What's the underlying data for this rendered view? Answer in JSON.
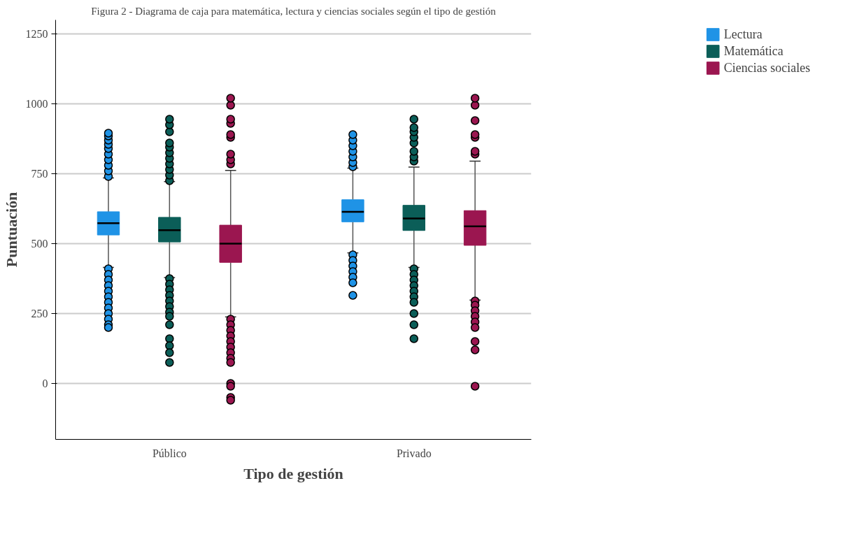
{
  "chart_data": {
    "type": "box",
    "title": "Figura 2 - Diagrama de caja para matemática, lectura y ciencias sociales según el tipo de gestión",
    "xlabel": "Tipo de gestión",
    "ylabel": "Puntuación",
    "categories": [
      "Público",
      "Privado"
    ],
    "ylim": [
      -200,
      1300
    ],
    "yticks": [
      0,
      250,
      500,
      750,
      1000,
      1250
    ],
    "grid": "y",
    "legend": "top right",
    "marker": "circle",
    "series": [
      {
        "name": "Lectura",
        "color": "#1f93e6",
        "boxes": [
          {
            "low": 415,
            "q1": 531,
            "median": 573,
            "q3": 614,
            "high": 735,
            "outliers": [
              740,
              760,
              780,
              800,
              820,
              840,
              855,
              870,
              885,
              895,
              410,
              390,
              370,
              350,
              330,
              310,
              290,
              270,
              250,
              230,
              210,
              200
            ]
          },
          {
            "low": 467,
            "q1": 578,
            "median": 614,
            "q3": 657,
            "high": 770,
            "outliers": [
              775,
              790,
              810,
              830,
              850,
              870,
              890,
              460,
              440,
              420,
              400,
              380,
              360,
              315
            ]
          }
        ]
      },
      {
        "name": "Matemática",
        "color": "#0b5e58",
        "boxes": [
          {
            "low": 379,
            "q1": 506,
            "median": 548,
            "q3": 594,
            "high": 722,
            "outliers": [
              725,
              745,
              765,
              785,
              805,
              825,
              845,
              860,
              900,
              925,
              945,
              375,
              355,
              335,
              315,
              295,
              275,
              255,
              240,
              210,
              160,
              135,
              110,
              75
            ]
          },
          {
            "low": 415,
            "q1": 547,
            "median": 590,
            "q3": 637,
            "high": 774,
            "outliers": [
              795,
              810,
              830,
              860,
              880,
              900,
              915,
              945,
              410,
              390,
              370,
              350,
              330,
              310,
              290,
              250,
              210,
              160
            ]
          }
        ]
      },
      {
        "name": "Ciencias sociales",
        "color": "#9b1650",
        "boxes": [
          {
            "low": 238,
            "q1": 433,
            "median": 500,
            "q3": 566,
            "high": 762,
            "outliers": [
              785,
              800,
              820,
              880,
              890,
              930,
              945,
              995,
              1020,
              230,
              210,
              190,
              170,
              150,
              130,
              110,
              90,
              75,
              0,
              -10,
              -50,
              -60
            ]
          },
          {
            "low": 298,
            "q1": 494,
            "median": 562,
            "q3": 618,
            "high": 795,
            "outliers": [
              820,
              830,
              880,
              890,
              940,
              995,
              1020,
              295,
              280,
              260,
              240,
              220,
              200,
              150,
              120,
              -10
            ]
          }
        ]
      }
    ]
  }
}
